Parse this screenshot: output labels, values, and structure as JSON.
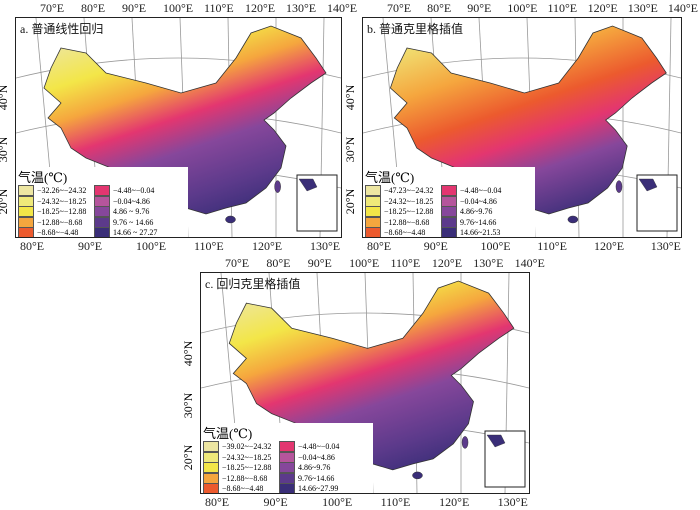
{
  "figure": {
    "legend_title": "气温(℃)",
    "colors": [
      "#ede6a2",
      "#efe97a",
      "#f3e648",
      "#f5a63e",
      "#ec5a2e",
      "#e33670",
      "#b5559c",
      "#86479b",
      "#5c3a8b",
      "#3a2e78"
    ],
    "top_lon_labels": [
      "70°E",
      "80°E",
      "90°E",
      "100°E",
      "110°E",
      "120°E",
      "130°E",
      "140°E"
    ],
    "bottom_lon_labels": [
      "80°E",
      "90°E",
      "100°E",
      "110°E",
      "120°E",
      "130°E"
    ],
    "lat_labels": [
      "20°N",
      "30°N",
      "40°N"
    ],
    "panels": [
      {
        "label": "a. 普通线性回归",
        "ranges": [
          "−32.26~−24.32",
          "−24.32~−18.25",
          "−18.25~−12.88",
          "−12.88~−8.68",
          "−8.68~−4.48",
          "−4.48~−0.04",
          "−0.04~4.86",
          "4.86 ~ 9.76",
          "9.76 ~ 14.66",
          "14.66 ~ 27.27"
        ]
      },
      {
        "label": "b. 普通克里格插值",
        "ranges": [
          "−47.23~−24.32",
          "−24.32~−18.25",
          "−18.25~−12.88",
          "−12.88~−8.68",
          "−8.68~−4.48",
          "−4.48~−0.04",
          "−0.04~4.86",
          "4.86~9.76",
          "9.76~14.66",
          "14.66~21.53"
        ]
      },
      {
        "label": "c. 回归克里格插值",
        "ranges": [
          "−39.02~−24.32",
          "−24.32~−18.25",
          "−18.25~−12.88",
          "−12.88~−8.68",
          "−8.68~−4.48",
          "−4.48~−0.04",
          "−0.04~4.86",
          "4.86~9.76",
          "9.76~14.66",
          "14.66~27.99"
        ]
      }
    ]
  }
}
